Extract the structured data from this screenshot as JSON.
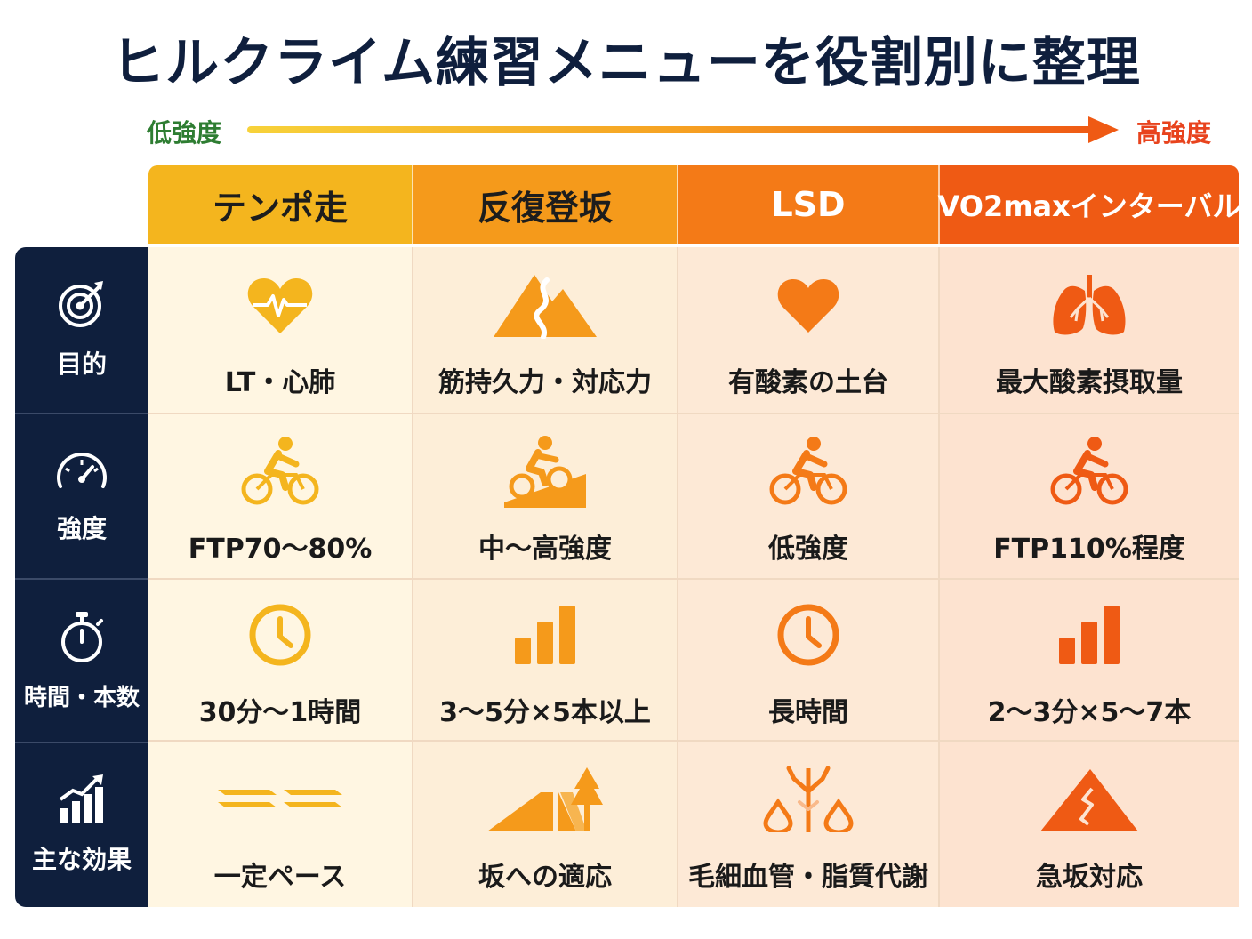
{
  "title": "ヒルクライム練習メニューを役割別に整理",
  "scale": {
    "low": "低強度",
    "high": "高強度"
  },
  "columns": [
    {
      "label": "テンポ走",
      "color": "#f4b51e"
    },
    {
      "label": "反復登坂",
      "color": "#f59a1b"
    },
    {
      "label": "LSD",
      "color": "#f47a17"
    },
    {
      "label": "VO2maxインターバル",
      "color": "#ef5a14"
    }
  ],
  "rows": [
    {
      "label": "目的",
      "icon": "target-icon",
      "cells": [
        {
          "icon": "heartbeat-icon",
          "text": "LT・心肺"
        },
        {
          "icon": "mountain-road-icon",
          "text": "筋持久力・対応力"
        },
        {
          "icon": "heart-icon",
          "text": "有酸素の土台"
        },
        {
          "icon": "lungs-icon",
          "text": "最大酸素摂取量"
        }
      ]
    },
    {
      "label": "強度",
      "icon": "speedometer-icon",
      "cells": [
        {
          "icon": "cyclist-icon",
          "text": "FTP70〜80%"
        },
        {
          "icon": "cyclist-uphill-icon",
          "text": "中〜高強度"
        },
        {
          "icon": "cyclist-icon",
          "text": "低強度"
        },
        {
          "icon": "cyclist-icon",
          "text": "FTP110%程度"
        }
      ]
    },
    {
      "label": "時間・本数",
      "icon": "stopwatch-icon",
      "cells": [
        {
          "icon": "clock-icon",
          "text": "30分〜1時間"
        },
        {
          "icon": "bar-steps-icon",
          "text": "3〜5分×5本以上"
        },
        {
          "icon": "clock-icon",
          "text": "長時間"
        },
        {
          "icon": "bar-steps-icon",
          "text": "2〜3分×5〜7本"
        }
      ]
    },
    {
      "label": "主な効果",
      "icon": "growth-chart-icon",
      "cells": [
        {
          "icon": "steady-pace-icon",
          "text": "一定ペース"
        },
        {
          "icon": "slope-tree-icon",
          "text": "坂への適応"
        },
        {
          "icon": "capillary-drops-icon",
          "text": "毛細血管・脂質代謝"
        },
        {
          "icon": "cracked-mountain-icon",
          "text": "急坂対応"
        }
      ]
    }
  ]
}
